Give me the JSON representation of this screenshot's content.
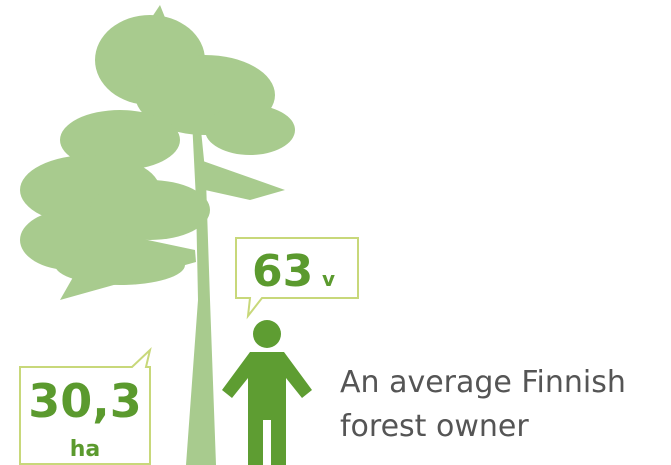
{
  "age_bubble": {
    "number": "63",
    "unit": "v"
  },
  "area_bubble": {
    "number": "30,3",
    "unit": "ha"
  },
  "caption": {
    "line1": "An average Finnish",
    "line2": "forest owner"
  }
}
